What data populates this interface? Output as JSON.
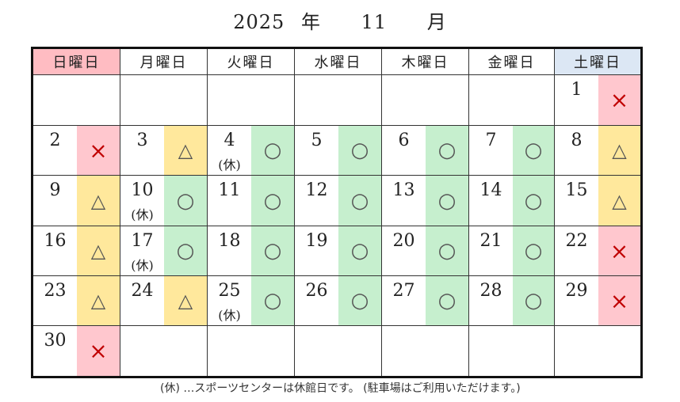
{
  "title": {
    "year": "2025",
    "year_unit": "年",
    "month": "11",
    "month_unit": "月"
  },
  "weekdays": [
    {
      "label": "日曜日",
      "color": "#ffbcc2"
    },
    {
      "label": "月曜日",
      "color": "#ffffff"
    },
    {
      "label": "火曜日",
      "color": "#ffffff"
    },
    {
      "label": "水曜日",
      "color": "#ffffff"
    },
    {
      "label": "木曜日",
      "color": "#ffffff"
    },
    {
      "label": "金曜日",
      "color": "#ffffff"
    },
    {
      "label": "土曜日",
      "color": "#dce7f4"
    }
  ],
  "status_styles": {
    "×": {
      "class": "x",
      "bg": "#ffc7ce"
    },
    "△": {
      "class": "tri",
      "bg": "#ffe89c"
    },
    "○": {
      "class": "o",
      "bg": "#c6efce"
    }
  },
  "leading_blanks": 6,
  "days": [
    {
      "day": "1",
      "status": "×"
    },
    {
      "day": "2",
      "status": "×"
    },
    {
      "day": "3",
      "status": "△"
    },
    {
      "day": "4",
      "status": "○",
      "note": "(休)"
    },
    {
      "day": "5",
      "status": "○"
    },
    {
      "day": "6",
      "status": "○"
    },
    {
      "day": "7",
      "status": "○"
    },
    {
      "day": "8",
      "status": "△"
    },
    {
      "day": "9",
      "status": "△"
    },
    {
      "day": "10",
      "status": "○",
      "note": "(休)"
    },
    {
      "day": "11",
      "status": "○"
    },
    {
      "day": "12",
      "status": "○"
    },
    {
      "day": "13",
      "status": "○"
    },
    {
      "day": "14",
      "status": "○"
    },
    {
      "day": "15",
      "status": "△"
    },
    {
      "day": "16",
      "status": "△"
    },
    {
      "day": "17",
      "status": "○",
      "note": "(休)"
    },
    {
      "day": "18",
      "status": "○"
    },
    {
      "day": "19",
      "status": "○"
    },
    {
      "day": "20",
      "status": "○"
    },
    {
      "day": "21",
      "status": "○"
    },
    {
      "day": "22",
      "status": "×"
    },
    {
      "day": "23",
      "status": "△"
    },
    {
      "day": "24",
      "status": "△"
    },
    {
      "day": "25",
      "status": "○",
      "note": "(休)"
    },
    {
      "day": "26",
      "status": "○"
    },
    {
      "day": "27",
      "status": "○"
    },
    {
      "day": "28",
      "status": "○"
    },
    {
      "day": "29",
      "status": "×"
    },
    {
      "day": "30",
      "status": "×"
    }
  ],
  "footnote": "(休) …スポーツセンターは休館日です。 (駐車場はご利用いただけます。)"
}
